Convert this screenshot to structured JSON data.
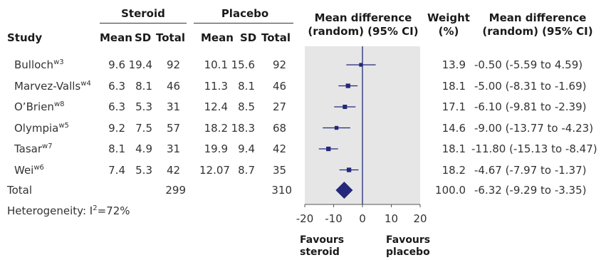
{
  "headers": {
    "study": "Study",
    "steroid": "Steroid",
    "placebo": "Placebo",
    "mean": "Mean",
    "sd": "SD",
    "total": "Total",
    "md_plot_l1": "Mean difference",
    "md_plot_l2": "(random) (95% CI)",
    "weight_l1": "Weight",
    "weight_l2": "(%)",
    "md_text_l1": "Mean difference",
    "md_text_l2": "(random) (95% CI)"
  },
  "rows": [
    {
      "study": "Bulloch",
      "ref": "w3",
      "s_mean": "9.6",
      "s_sd": "19.4",
      "s_total": "92",
      "p_mean": "10.1",
      "p_sd": "15.6",
      "p_total": "92",
      "weight": "13.9",
      "ci_text": "-0.50 (-5.59 to 4.59)"
    },
    {
      "study": "Marvez-Valls",
      "ref": "w4",
      "s_mean": "6.3",
      "s_sd": "8.1",
      "s_total": "46",
      "p_mean": "11.3",
      "p_sd": "8.1",
      "p_total": "46",
      "weight": "18.1",
      "ci_text": "-5.00 (-8.31 to -1.69)"
    },
    {
      "study": "O’Brien",
      "ref": "w8",
      "s_mean": "6.3",
      "s_sd": "5.3",
      "s_total": "31",
      "p_mean": "12.4",
      "p_sd": "8.5",
      "p_total": "27",
      "weight": "17.1",
      "ci_text": "-6.10 (-9.81 to -2.39)"
    },
    {
      "study": "Olympia",
      "ref": "w5",
      "s_mean": "9.2",
      "s_sd": "7.5",
      "s_total": "57",
      "p_mean": "18.2",
      "p_sd": "18.3",
      "p_total": "68",
      "weight": "14.6",
      "ci_text": "-9.00 (-13.77 to -4.23)"
    },
    {
      "study": "Tasar",
      "ref": "w7",
      "s_mean": "8.1",
      "s_sd": "4.9",
      "s_total": "31",
      "p_mean": "19.9",
      "p_sd": "9.4",
      "p_total": "42",
      "weight": "18.1",
      "ci_text": "-11.80 (-15.13 to -8.47)"
    },
    {
      "study": "Wei",
      "ref": "w6",
      "s_mean": "7.4",
      "s_sd": "5.3",
      "s_total": "42",
      "p_mean": "12.07",
      "p_sd": "8.7",
      "p_total": "35",
      "weight": "18.2",
      "ci_text": "-4.67 (-7.97 to -1.37)"
    }
  ],
  "total_row": {
    "label": "Total",
    "s_total": "299",
    "p_total": "310",
    "weight": "100.0",
    "ci_text": "-6.32 (-9.29 to -3.35)"
  },
  "heterogeneity": {
    "prefix": "Heterogeneity: I",
    "sup": "2",
    "suffix": "=72%"
  },
  "favours": {
    "left_l1": "Favours",
    "left_l2": "steroid",
    "right_l1": "Favours",
    "right_l2": "placebo"
  },
  "chart_data": {
    "type": "forest",
    "xlim": [
      -20,
      20
    ],
    "xticks": [
      -20,
      -10,
      0,
      10,
      20
    ],
    "xtick_labels": [
      "-20",
      "-10",
      "0",
      "10",
      "20"
    ],
    "studies": [
      {
        "name": "Bulloch",
        "md": -0.5,
        "lo": -5.59,
        "hi": 4.59,
        "weight": 13.9
      },
      {
        "name": "Marvez-Valls",
        "md": -5.0,
        "lo": -8.31,
        "hi": -1.69,
        "weight": 18.1
      },
      {
        "name": "O’Brien",
        "md": -6.1,
        "lo": -9.81,
        "hi": -2.39,
        "weight": 17.1
      },
      {
        "name": "Olympia",
        "md": -9.0,
        "lo": -13.77,
        "hi": -4.23,
        "weight": 14.6
      },
      {
        "name": "Tasar",
        "md": -11.8,
        "lo": -15.13,
        "hi": -8.47,
        "weight": 18.1
      },
      {
        "name": "Wei",
        "md": -4.67,
        "lo": -7.97,
        "hi": -1.37,
        "weight": 18.2
      }
    ],
    "pooled": {
      "md": -6.32,
      "lo": -9.29,
      "hi": -3.35,
      "weight": 100.0
    },
    "colors": {
      "marker": "#23287a",
      "panel": "#e6e6e6",
      "ref_line": "#23287a"
    }
  }
}
